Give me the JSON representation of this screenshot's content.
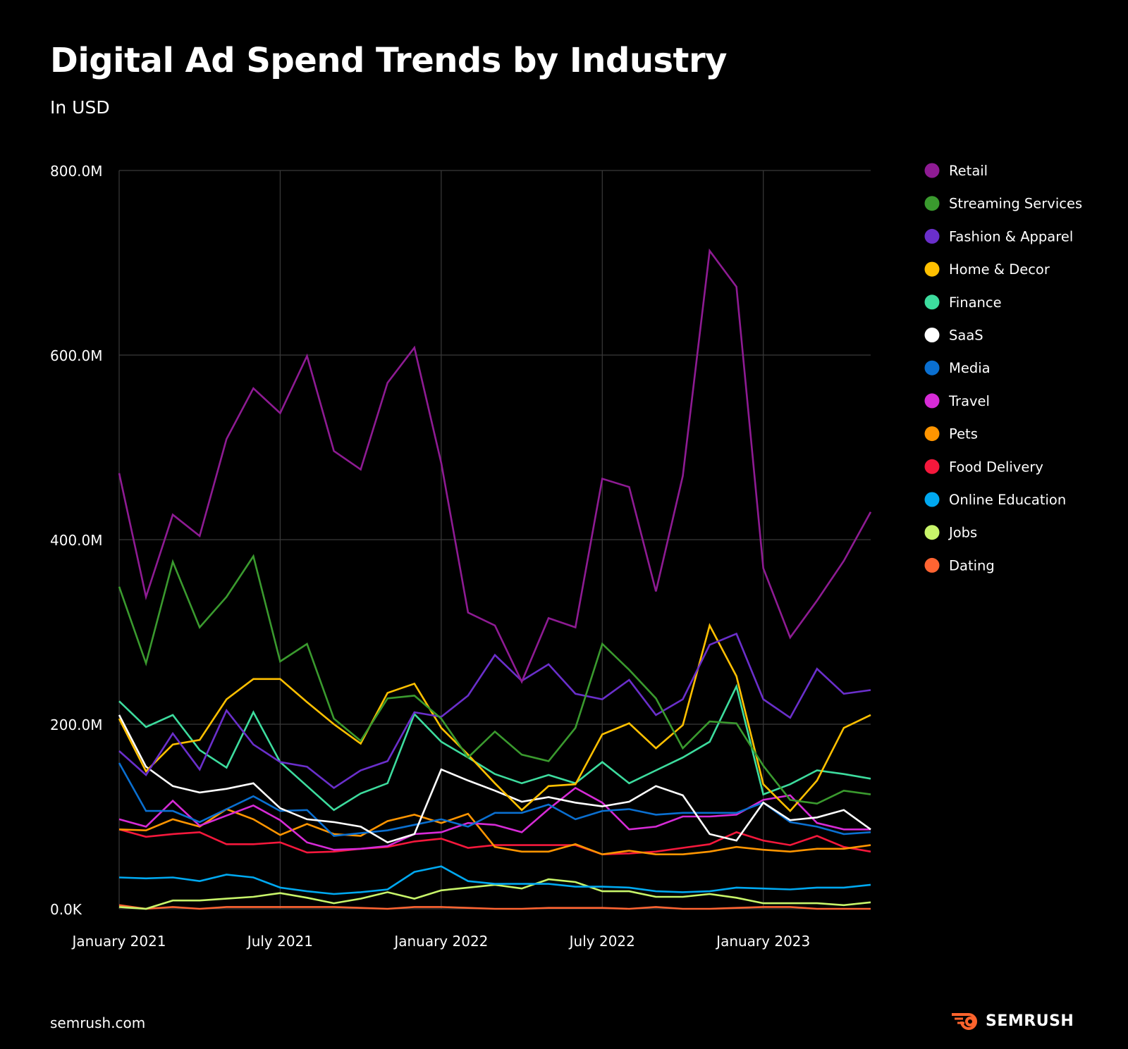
{
  "title": "Digital Ad Spend Trends by Industry",
  "subtitle": "In USD",
  "footer": {
    "source": "semrush.com",
    "logo": "SEMRUSH"
  },
  "chart_data": {
    "type": "line",
    "title": "Digital Ad Spend Trends by Industry",
    "subtitle": "In USD",
    "x": [
      "Jan 2021",
      "Feb 2021",
      "Mar 2021",
      "Apr 2021",
      "May 2021",
      "Jun 2021",
      "Jul 2021",
      "Aug 2021",
      "Sep 2021",
      "Oct 2021",
      "Nov 2021",
      "Dec 2021",
      "Jan 2022",
      "Feb 2022",
      "Mar 2022",
      "Apr 2022",
      "May 2022",
      "Jun 2022",
      "Jul 2022",
      "Aug 2022",
      "Sep 2022",
      "Oct 2022",
      "Nov 2022",
      "Dec 2022",
      "Jan 2023",
      "Feb 2023",
      "Mar 2023",
      "Apr 2023",
      "May 2023"
    ],
    "x_ticks": [
      {
        "index": 0,
        "label": "January 2021"
      },
      {
        "index": 6,
        "label": "July 2021"
      },
      {
        "index": 12,
        "label": "January 2022"
      },
      {
        "index": 18,
        "label": "July 2022"
      },
      {
        "index": 24,
        "label": "January 2023"
      }
    ],
    "y_unit": "M USD",
    "ylim": [
      0,
      800
    ],
    "y_ticks": [
      {
        "value": 0,
        "label": "0.0K"
      },
      {
        "value": 200,
        "label": "200.0M"
      },
      {
        "value": 400,
        "label": "400.0M"
      },
      {
        "value": 600,
        "label": "600.0M"
      },
      {
        "value": 800,
        "label": "800.0M"
      }
    ],
    "grid": true,
    "legend_position": "right",
    "series": [
      {
        "name": "Retail",
        "color": "#8E1B93",
        "values": [
          472,
          338,
          427,
          404,
          509,
          564,
          537,
          599,
          496,
          476,
          570,
          608,
          483,
          321,
          307,
          246,
          315,
          305,
          466,
          457,
          344,
          469,
          713,
          674,
          369,
          294,
          334,
          377,
          430
        ]
      },
      {
        "name": "Streaming Services",
        "color": "#3A9A2E",
        "values": [
          349,
          266,
          376,
          305,
          338,
          382,
          268,
          287,
          206,
          182,
          228,
          231,
          206,
          164,
          192,
          167,
          160,
          196,
          287,
          259,
          228,
          174,
          203,
          201,
          155,
          118,
          114,
          128,
          124
        ]
      },
      {
        "name": "Fashion & Apparel",
        "color": "#6A2FCB",
        "values": [
          171,
          145,
          190,
          151,
          215,
          178,
          159,
          154,
          131,
          150,
          160,
          213,
          208,
          231,
          275,
          247,
          265,
          233,
          227,
          248,
          210,
          227,
          286,
          298,
          227,
          207,
          260,
          233,
          237
        ]
      },
      {
        "name": "Home & Decor",
        "color": "#FFC000",
        "values": [
          206,
          149,
          178,
          183,
          227,
          249,
          249,
          224,
          200,
          179,
          234,
          244,
          196,
          167,
          136,
          107,
          133,
          135,
          189,
          201,
          174,
          199,
          307,
          252,
          135,
          106,
          139,
          196,
          210
        ]
      },
      {
        "name": "Finance",
        "color": "#3DDC9E",
        "values": [
          225,
          197,
          210,
          172,
          153,
          213,
          159,
          133,
          107,
          125,
          136,
          211,
          181,
          164,
          146,
          136,
          145,
          136,
          159,
          136,
          150,
          164,
          181,
          241,
          124,
          135,
          150,
          146,
          141
        ]
      },
      {
        "name": "SaaS",
        "color": "#FFFFFF",
        "values": [
          210,
          154,
          133,
          126,
          130,
          136,
          109,
          97,
          94,
          89,
          72,
          81,
          151,
          139,
          128,
          116,
          121,
          115,
          111,
          116,
          133,
          123,
          81,
          74,
          115,
          96,
          99,
          107,
          86
        ]
      },
      {
        "name": "Media",
        "color": "#0A6FD0",
        "values": [
          158,
          106,
          106,
          94,
          108,
          122,
          106,
          107,
          79,
          82,
          85,
          91,
          97,
          89,
          104,
          104,
          113,
          97,
          106,
          108,
          102,
          104,
          104,
          104,
          115,
          94,
          89,
          81,
          83
        ]
      },
      {
        "name": "Travel",
        "color": "#D62BD6",
        "values": [
          97,
          89,
          117,
          90,
          101,
          112,
          96,
          72,
          64,
          65,
          68,
          81,
          83,
          93,
          91,
          83,
          108,
          131,
          115,
          86,
          89,
          100,
          100,
          102,
          118,
          123,
          93,
          86,
          86
        ]
      },
      {
        "name": "Pets",
        "color": "#FF9500",
        "values": [
          86,
          85,
          97,
          89,
          108,
          97,
          80,
          92,
          81,
          79,
          95,
          102,
          93,
          103,
          67,
          62,
          62,
          70,
          59,
          63,
          59,
          59,
          62,
          67,
          64,
          62,
          65,
          65,
          69
        ]
      },
      {
        "name": "Food Delivery",
        "color": "#F5183C",
        "values": [
          86,
          78,
          81,
          83,
          70,
          70,
          72,
          61,
          62,
          65,
          67,
          73,
          76,
          66,
          69,
          69,
          69,
          69,
          59,
          60,
          62,
          66,
          70,
          83,
          74,
          69,
          79,
          67,
          62
        ]
      },
      {
        "name": "Online Education",
        "color": "#00A8F0",
        "values": [
          34,
          33,
          34,
          30,
          37,
          34,
          23,
          19,
          16,
          18,
          21,
          40,
          46,
          30,
          27,
          27,
          27,
          24,
          24,
          23,
          19,
          18,
          19,
          23,
          22,
          21,
          23,
          23,
          26
        ]
      },
      {
        "name": "Jobs",
        "color": "#C8F56A",
        "values": [
          2,
          0,
          9,
          9,
          11,
          13,
          17,
          12,
          6,
          11,
          18,
          11,
          20,
          23,
          26,
          22,
          32,
          29,
          19,
          19,
          13,
          13,
          16,
          12,
          6,
          6,
          6,
          4,
          7
        ]
      },
      {
        "name": "Dating",
        "color": "#FF6432",
        "values": [
          4,
          0,
          2,
          0,
          2,
          2,
          2,
          2,
          2,
          1,
          0,
          2,
          2,
          1,
          0,
          0,
          1,
          1,
          1,
          0,
          2,
          0,
          0,
          1,
          2,
          2,
          0,
          0,
          0
        ]
      }
    ]
  }
}
